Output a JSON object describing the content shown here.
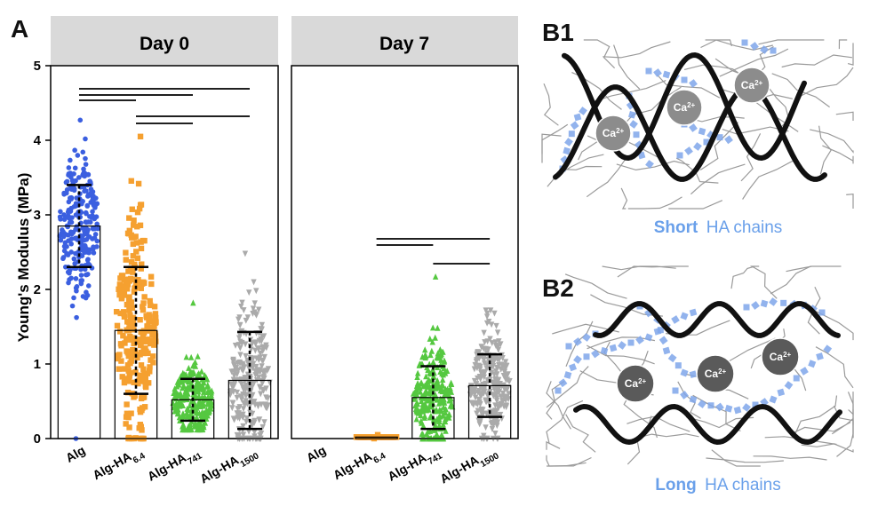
{
  "panel_a_label": "A",
  "panel_b1_label": "B1",
  "panel_b2_label": "B2",
  "chart_data": [
    {
      "type": "bar",
      "title": "Day 0",
      "ylabel": "Young's Modulus (MPa)",
      "ylim": [
        0,
        5
      ],
      "yticks": [
        "0",
        "1",
        "2",
        "3",
        "4",
        "5"
      ],
      "categories": [
        {
          "base": "Alg",
          "sub": ""
        },
        {
          "base": "Alg-HA",
          "sub": "6.4"
        },
        {
          "base": "Alg-HA",
          "sub": "741"
        },
        {
          "base": "Alg-HA",
          "sub": "1500"
        }
      ],
      "values": [
        2.85,
        1.45,
        0.52,
        0.78
      ],
      "sd": [
        0.55,
        0.85,
        0.28,
        0.65
      ],
      "point_range": [
        [
          0.0,
          4.27
        ],
        [
          0.0,
          4.05
        ],
        [
          0.12,
          1.82
        ],
        [
          0.0,
          2.48
        ]
      ],
      "colors": [
        "#3b5fe0",
        "#f5a030",
        "#55c840",
        "#aaaaaa"
      ],
      "markers": [
        "circle",
        "square",
        "triangle-up",
        "triangle-down"
      ],
      "significance": [
        [
          0,
          3
        ],
        [
          0,
          2
        ],
        [
          0,
          1
        ],
        [
          1,
          3
        ],
        [
          1,
          2
        ]
      ]
    },
    {
      "type": "bar",
      "title": "Day 7",
      "ylim": [
        0,
        5
      ],
      "categories": [
        {
          "base": "Alg",
          "sub": ""
        },
        {
          "base": "Alg-HA",
          "sub": "6.4"
        },
        {
          "base": "Alg-HA",
          "sub": "741"
        },
        {
          "base": "Alg-HA",
          "sub": "1500"
        }
      ],
      "values": [
        0.0,
        0.02,
        0.55,
        0.71
      ],
      "sd": [
        0.0,
        0.0,
        0.42,
        0.42
      ],
      "point_range": [
        [
          0,
          0
        ],
        [
          0.0,
          0.05
        ],
        [
          0.0,
          2.17
        ],
        [
          0.0,
          1.72
        ]
      ],
      "colors": [
        "#3b5fe0",
        "#f5a030",
        "#55c840",
        "#aaaaaa"
      ],
      "markers": [
        "circle",
        "square",
        "triangle-up",
        "triangle-down"
      ],
      "significance": [
        [
          1,
          3
        ],
        [
          1,
          2
        ],
        [
          2,
          3
        ]
      ]
    }
  ],
  "diagram": {
    "ion_label": "Ca",
    "ion_charge": "2+",
    "b1_caption_strong": "Short",
    "b1_caption_rest": "HA chains",
    "b2_caption_strong": "Long",
    "b2_caption_rest": "HA chains",
    "alginate_color": "#111111",
    "ha_color": "#7fa6ea",
    "fiber_color": "#9a9a9a",
    "ion_color_b1": "#8c8c8c",
    "ion_color_b2": "#5a5a5a",
    "caption_color": "#6aa0ea"
  }
}
